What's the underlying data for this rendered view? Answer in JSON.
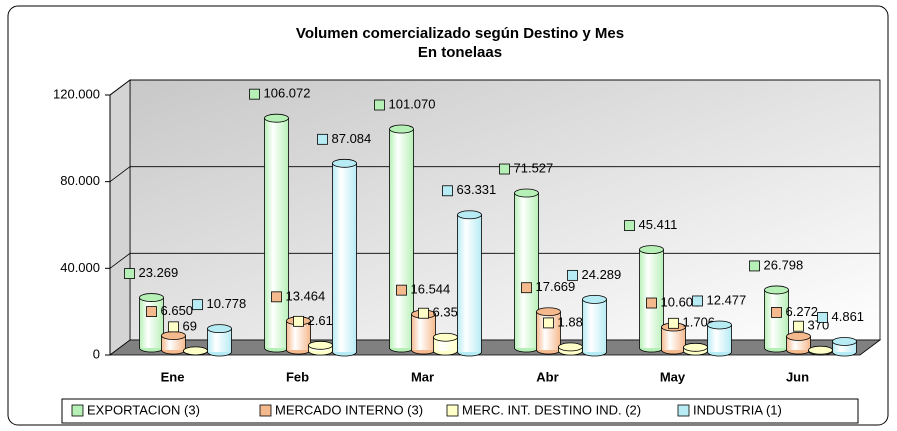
{
  "chart_data": {
    "type": "bar3d",
    "title": "Volumen comercializado según Destino y Mes",
    "subtitle": "En tonelaas",
    "categories": [
      "Ene",
      "Feb",
      "Mar",
      "Abr",
      "May",
      "Jun"
    ],
    "series": [
      {
        "name": "EXPORTACION (3)",
        "color": "#b7f0b7",
        "values": [
          23269,
          106072,
          101070,
          71527,
          45411,
          26798
        ],
        "value_labels": [
          "23.269",
          "106.072",
          "101.070",
          "71.527",
          "45.411",
          "26.798"
        ]
      },
      {
        "name": "MERCADO INTERNO (3)",
        "color": "#f5b98e",
        "values": [
          6650,
          13464,
          16544,
          17669,
          10606,
          6272
        ],
        "value_labels": [
          "6.650",
          "13.464",
          "16.544",
          "17.669",
          "10.606",
          "6.272"
        ]
      },
      {
        "name": "MERC. INT. DESTINO IND. (2)",
        "color": "#ffffc8",
        "values": [
          69,
          2614,
          6356,
          1888,
          1706,
          370
        ],
        "value_labels": [
          "69",
          "2.614",
          "6.356",
          "1.888",
          "1.706",
          "370"
        ]
      },
      {
        "name": "INDUSTRIA (1)",
        "color": "#b7ecf5",
        "values": [
          10778,
          87084,
          63331,
          24289,
          12477,
          4861
        ],
        "value_labels": [
          "10.778",
          "87.084",
          "63.331",
          "24.289",
          "12.477",
          "4.861"
        ]
      }
    ],
    "ylim": [
      0,
      120000
    ],
    "yticks": [
      0,
      {
        "value": 40000,
        "label": "40.000"
      },
      {
        "value": 80000,
        "label": "80.000"
      },
      {
        "value": 120000,
        "label": "120.000"
      }
    ],
    "grid": true,
    "legend": "bottom"
  }
}
